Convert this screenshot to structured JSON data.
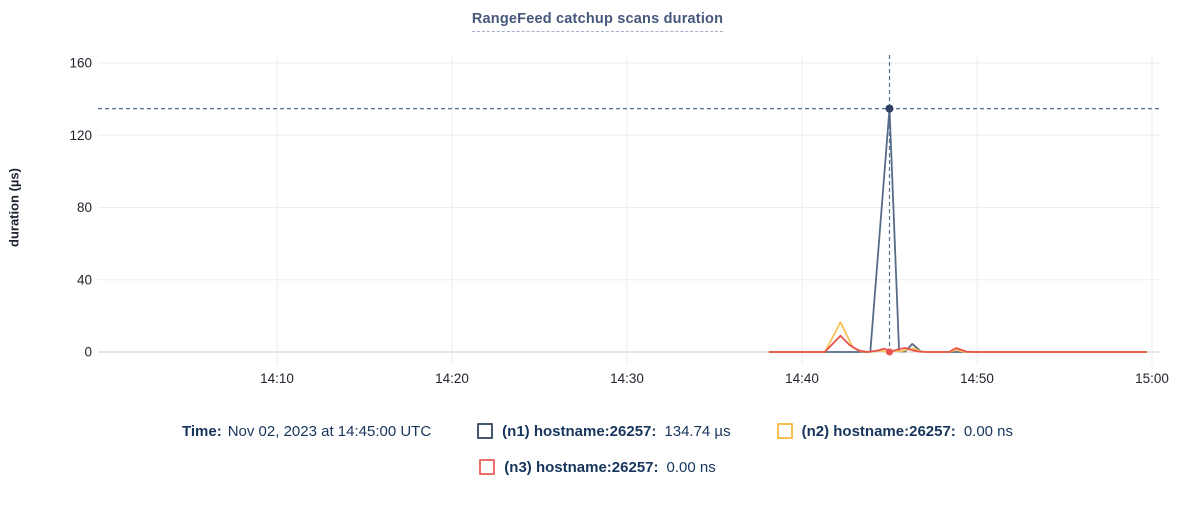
{
  "title": {
    "text": "RangeFeed catchup scans duration"
  },
  "legend": {
    "time_label": "Time:",
    "time_value": "Nov 02, 2023 at 14:45:00 UTC"
  },
  "colors": {
    "title": "#46587c",
    "legend_text": "#17355c",
    "tick_text": "#20242c",
    "gridline": "#ededed",
    "baseline": "#dedede",
    "crosshair": "#54708f"
  },
  "chart_data": {
    "type": "line",
    "title": "RangeFeed catchup scans duration",
    "xlabel": "",
    "ylabel": "duration (µs)",
    "ylim": [
      0,
      160
    ],
    "y_ticks": [
      0,
      40,
      80,
      120,
      160
    ],
    "x_unit": "minutes after 14:00 UTC",
    "x_ticks": [
      {
        "t": 10,
        "label": "14:10"
      },
      {
        "t": 20,
        "label": "14:20"
      },
      {
        "t": 30,
        "label": "14:30"
      },
      {
        "t": 40,
        "label": "14:40"
      },
      {
        "t": 50,
        "label": "14:50"
      },
      {
        "t": 60,
        "label": "15:00"
      }
    ],
    "grid": true,
    "legend_position": "bottom",
    "series": [
      {
        "id": "n1",
        "color": "#566b86",
        "swatch_color": "#44576f",
        "legend_label": "(n1) hostname:26257:",
        "legend_value": "134.74 µs",
        "points": [
          [
            38.1,
            0
          ],
          [
            41,
            0
          ],
          [
            43.9,
            0
          ],
          [
            45,
            134.74
          ],
          [
            45.55,
            0.4
          ],
          [
            45.9,
            0.3
          ],
          [
            46.3,
            4.5
          ],
          [
            46.8,
            0.2
          ],
          [
            47.2,
            0
          ],
          [
            50,
            0
          ],
          [
            55,
            0
          ],
          [
            59.7,
            0
          ]
        ]
      },
      {
        "id": "n2",
        "color": "#f8c158",
        "swatch_color": "#f6bf50",
        "legend_label": "(n2) hostname:26257:",
        "legend_value": "0.00 ns",
        "points": [
          [
            38.1,
            0
          ],
          [
            41.3,
            0
          ],
          [
            42.2,
            16.5
          ],
          [
            42.9,
            2.5
          ],
          [
            43.4,
            0.3
          ],
          [
            43.9,
            0
          ],
          [
            44.4,
            0.8
          ],
          [
            44.8,
            0.2
          ],
          [
            45.2,
            0.8
          ],
          [
            45.6,
            0.3
          ],
          [
            46,
            1.2
          ],
          [
            46.4,
            2
          ],
          [
            46.8,
            0.2
          ],
          [
            47.2,
            0
          ],
          [
            48.4,
            0
          ],
          [
            48.8,
            1.2
          ],
          [
            49.3,
            0
          ],
          [
            55,
            0
          ],
          [
            59.7,
            0
          ]
        ]
      },
      {
        "id": "n3",
        "color": "#e8544d",
        "swatch_color": "#ee6e6b",
        "legend_label": "(n3) hostname:26257:",
        "legend_value": "0.00 ns",
        "points": [
          [
            38.1,
            0
          ],
          [
            41.3,
            0
          ],
          [
            42.2,
            9
          ],
          [
            42.7,
            4
          ],
          [
            43.2,
            1
          ],
          [
            43.7,
            0
          ],
          [
            44.3,
            0.8
          ],
          [
            44.7,
            1.8
          ],
          [
            45.1,
            0.3
          ],
          [
            45.5,
            1.5
          ],
          [
            45.9,
            2.2
          ],
          [
            46.3,
            1
          ],
          [
            46.7,
            0.2
          ],
          [
            47.1,
            0
          ],
          [
            48.4,
            0
          ],
          [
            48.8,
            2.2
          ],
          [
            49.4,
            0.2
          ],
          [
            49.8,
            0
          ],
          [
            55,
            0
          ],
          [
            59.7,
            0
          ]
        ]
      }
    ],
    "hover": {
      "t": 45,
      "time": "14:45:00",
      "value_line": 134.74,
      "dots": [
        {
          "series": "n1",
          "t": 45,
          "v": 134.74,
          "color": "#2e4164",
          "r": 4
        },
        {
          "series": "n3",
          "t": 45,
          "v": 0,
          "color": "#e8544d",
          "r": 3.5
        }
      ]
    }
  }
}
